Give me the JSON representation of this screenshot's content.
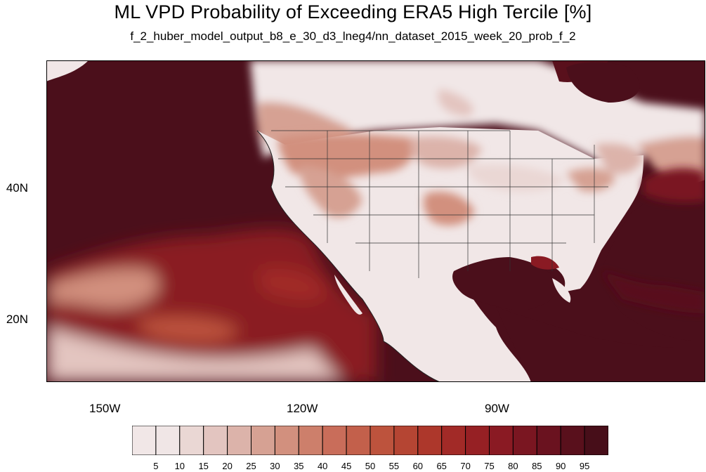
{
  "title": "ML VPD Probability of Exceeding ERA5 High Tercile [%]",
  "subtitle": "f_2_huber_model_output_b8_e_30_d3_lneg4/nn_dataset_2015_week_20_prob_f_2",
  "axes": {
    "lat_labels": [
      "40N",
      "20N"
    ],
    "lon_labels": [
      "150W",
      "120W",
      "90W"
    ]
  },
  "colorbar": {
    "levels": [
      "5",
      "10",
      "15",
      "20",
      "25",
      "30",
      "35",
      "40",
      "45",
      "50",
      "55",
      "60",
      "65",
      "70",
      "75",
      "80",
      "85",
      "90",
      "95"
    ],
    "colors": [
      "#f0e6e6",
      "#ead7d4",
      "#e3c5c0",
      "#dcb3aa",
      "#d6a193",
      "#d2907e",
      "#cd7f6b",
      "#c96d5a",
      "#c3604b",
      "#bd533d",
      "#b54533",
      "#ad372b",
      "#a22a27",
      "#962024",
      "#8a1a23",
      "#7a1621",
      "#6a121f",
      "#59101c",
      "#470e19"
    ]
  },
  "map": {
    "ocean_color": "#4b0f1b",
    "land_color": "#f1e7e7",
    "coastline_color": "#222222"
  }
}
